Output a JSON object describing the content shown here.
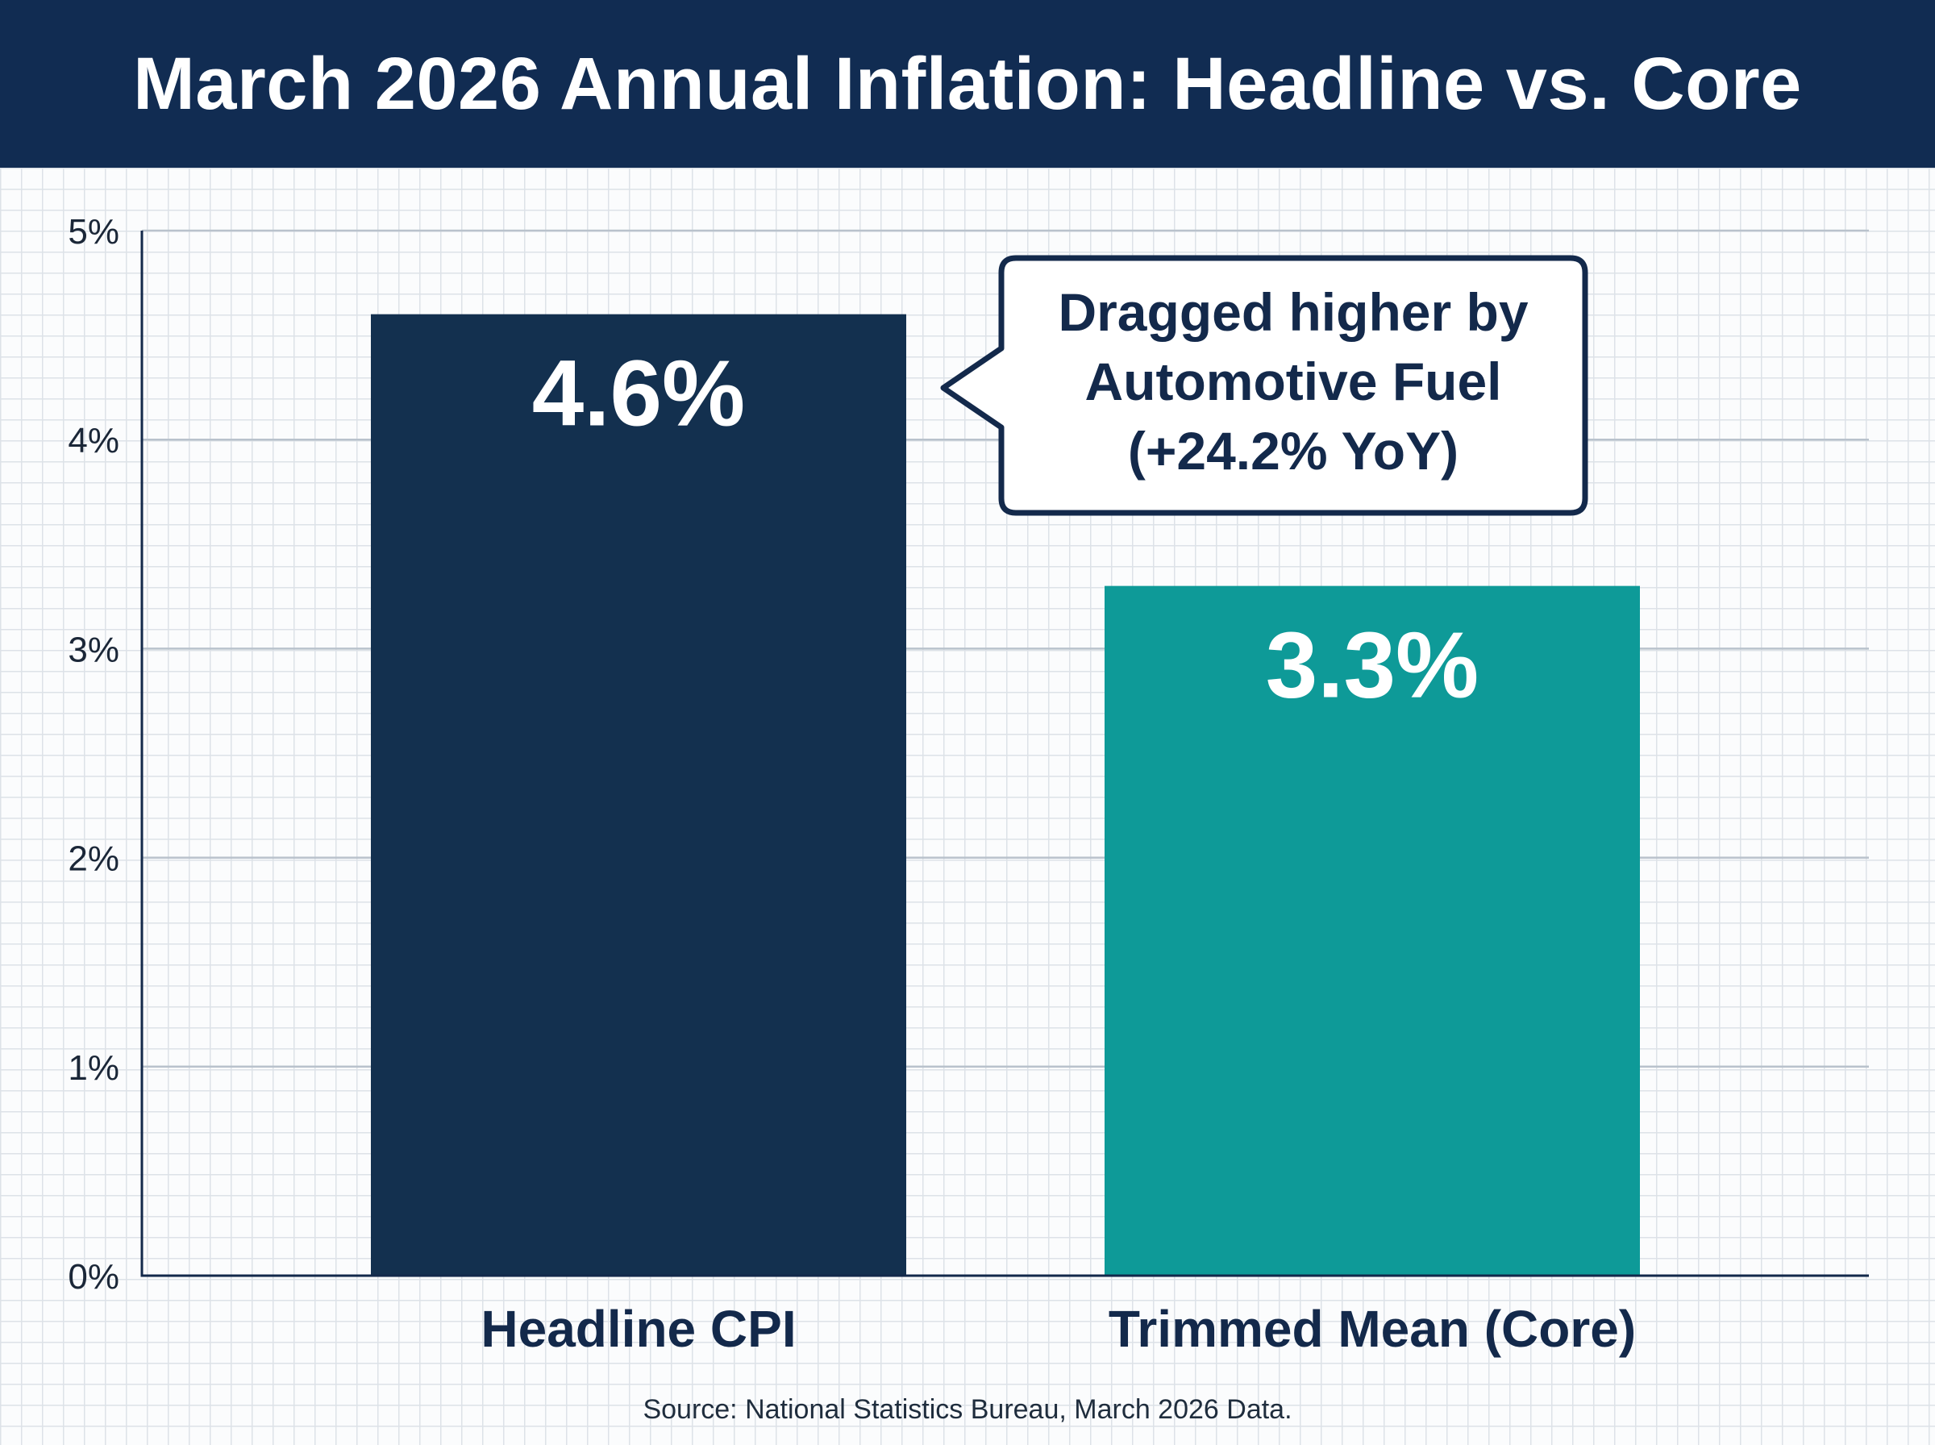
{
  "title": "March 2026 Annual Inflation: Headline vs. Core",
  "source": "Source: National Statistics Bureau, March 2026 Data.",
  "chart_data": {
    "type": "bar",
    "title": "March 2026 Annual Inflation: Headline vs. Core",
    "xlabel": "",
    "ylabel": "",
    "categories": [
      "Headline CPI",
      "Trimmed Mean (Core)"
    ],
    "values": [
      4.6,
      3.3
    ],
    "value_labels": [
      "4.6%",
      "3.3%"
    ],
    "colors": [
      "#13304f",
      "#0e9a98"
    ],
    "ylim": [
      0,
      5
    ],
    "yticks": [
      0,
      1,
      2,
      3,
      4,
      5
    ],
    "ytick_labels": [
      "0%",
      "1%",
      "2%",
      "3%",
      "4%",
      "5%"
    ],
    "grid": true,
    "annotation": {
      "target": "Headline CPI",
      "lines": [
        "Dragged higher by",
        "Automotive Fuel",
        "(+24.2% YoY)"
      ]
    }
  }
}
